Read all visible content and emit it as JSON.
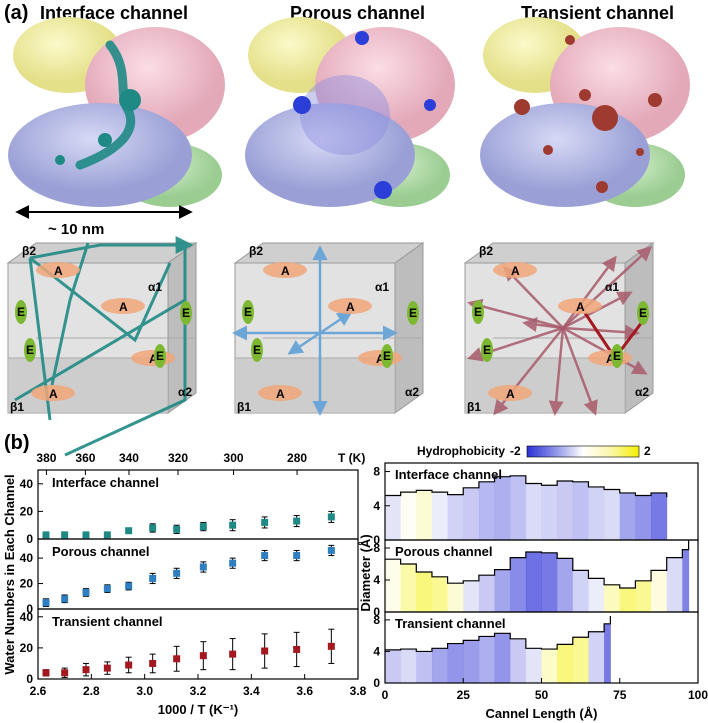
{
  "panel_a": {
    "label": "(a)",
    "titles": [
      "Interface channel",
      "Porous channel",
      "Transient channel"
    ],
    "scale_label": "~ 10 nm",
    "cube_labels": {
      "b2": "β2",
      "a1": "α1",
      "a2": "α2",
      "b1": "β1",
      "A": "A",
      "E": "E"
    }
  },
  "panel_b": {
    "label": "(b)"
  },
  "colors": {
    "interface": "#1f8a85",
    "porous": "#2f7ec0",
    "transient": "#a3191f",
    "protein_yellow": "#f1ef9c",
    "protein_pink": "#f2bfcd",
    "protein_blue": "#b8bde6",
    "protein_green": "#b7dfb0",
    "node_A": "#f0a679",
    "node_E": "#7cb832"
  },
  "chart_data": [
    {
      "type": "scatter",
      "xlabel": "1000 / T (K⁻¹)",
      "ylabel": "Water Numbers in Each Channel",
      "top_axis_label": "T (K)",
      "top_ticks": [
        "380",
        "360",
        "340",
        "320",
        "300",
        "280"
      ],
      "top_tick_values": [
        380,
        360,
        340,
        320,
        300,
        280
      ],
      "xlim": [
        2.6,
        3.8
      ],
      "x_ticks": [
        "2.6",
        "2.8",
        "3.0",
        "3.2",
        "3.4",
        "3.6",
        "3.8"
      ],
      "x": [
        2.63,
        2.7,
        2.78,
        2.86,
        2.94,
        3.03,
        3.12,
        3.22,
        3.33,
        3.45,
        3.57,
        3.7
      ],
      "panels": [
        {
          "name": "Interface channel",
          "ylim": [
            0,
            50
          ],
          "y_ticks": [
            "0",
            "20",
            "40"
          ],
          "values": [
            3,
            3,
            3,
            3,
            6,
            8,
            7,
            9,
            10,
            12,
            13,
            16
          ],
          "errors": [
            2,
            2,
            2,
            2,
            2,
            3,
            3,
            3,
            4,
            4,
            4,
            4
          ]
        },
        {
          "name": "Porous channel",
          "ylim": [
            0,
            55
          ],
          "y_ticks": [
            "0",
            "20",
            "40"
          ],
          "values": [
            5,
            8,
            13,
            16,
            18,
            24,
            28,
            33,
            36,
            42,
            42,
            46
          ],
          "errors": [
            3,
            3,
            3,
            3,
            3,
            4,
            4,
            4,
            4,
            4,
            4,
            4
          ]
        },
        {
          "name": "Transient channel",
          "ylim": [
            0,
            45
          ],
          "y_ticks": [
            "0",
            "20",
            "40"
          ],
          "values": [
            4,
            4,
            6,
            7,
            9,
            10,
            13,
            15,
            16,
            18,
            19,
            21
          ],
          "errors": [
            2,
            3,
            4,
            4,
            5,
            6,
            8,
            9,
            10,
            11,
            11,
            11
          ]
        }
      ]
    },
    {
      "type": "area",
      "xlabel": "Cannel Length (Å)",
      "ylabel": "Diameter (Å)",
      "colorbar_label": "Hydrophobicity",
      "colorbar_ticks": [
        "-2",
        "2"
      ],
      "xlim": [
        0,
        100
      ],
      "x_ticks": [
        "0",
        "25",
        "50",
        "75",
        "100"
      ],
      "panels": [
        {
          "name": "Interface channel",
          "ylim": [
            0,
            9
          ],
          "y_ticks": [
            "0",
            "4",
            "8"
          ],
          "x": [
            0,
            5,
            10,
            15,
            20,
            25,
            30,
            35,
            40,
            45,
            50,
            55,
            60,
            65,
            70,
            75,
            80,
            85,
            90
          ],
          "values": [
            5.2,
            5.6,
            5.8,
            5.6,
            5.3,
            6.1,
            6.8,
            7.4,
            7.5,
            6.6,
            6.4,
            6.9,
            6.8,
            6.2,
            5.9,
            5.5,
            5.2,
            5.5,
            5.0
          ],
          "hydro": [
            -0.3,
            0.1,
            0.4,
            -0.2,
            -0.5,
            -0.6,
            -0.8,
            -0.9,
            -0.7,
            -0.4,
            -0.5,
            -0.6,
            -0.7,
            -0.5,
            -0.4,
            -1.0,
            -1.2,
            -1.5,
            -1.8
          ]
        },
        {
          "name": "Porous channel",
          "ylim": [
            0,
            9
          ],
          "y_ticks": [
            "0",
            "4",
            "8"
          ],
          "x": [
            0,
            5,
            10,
            15,
            20,
            25,
            30,
            35,
            40,
            45,
            50,
            55,
            60,
            65,
            70,
            75,
            80,
            85,
            90,
            95,
            97
          ],
          "values": [
            6.6,
            6.0,
            5.0,
            4.4,
            3.6,
            3.9,
            4.6,
            5.3,
            6.8,
            7.5,
            7.4,
            6.7,
            5.2,
            4.2,
            3.4,
            3.0,
            3.9,
            5.2,
            6.8,
            7.8,
            9.0
          ],
          "hydro": [
            0.2,
            0.8,
            1.2,
            1.0,
            0.4,
            -0.3,
            -0.6,
            -1.0,
            -1.3,
            -1.6,
            -1.5,
            -1.0,
            -0.5,
            -0.2,
            0.6,
            1.2,
            1.0,
            0.3,
            -0.4,
            -1.4,
            -2.0
          ]
        },
        {
          "name": "Transient channel",
          "ylim": [
            0,
            9
          ],
          "y_ticks": [
            "0",
            "4",
            "8"
          ],
          "x": [
            0,
            5,
            10,
            15,
            20,
            25,
            30,
            35,
            40,
            45,
            50,
            55,
            60,
            65,
            70,
            72
          ],
          "values": [
            4.2,
            4.3,
            4.0,
            4.4,
            5.0,
            5.4,
            5.9,
            6.3,
            5.6,
            4.4,
            4.3,
            4.9,
            5.8,
            6.5,
            7.5,
            8.5
          ],
          "hydro": [
            -0.6,
            -0.4,
            -0.7,
            -1.0,
            -1.2,
            -1.1,
            -0.9,
            -1.2,
            -0.6,
            -0.3,
            0.5,
            1.2,
            1.0,
            -0.5,
            -1.5,
            -2.0
          ]
        }
      ]
    }
  ]
}
